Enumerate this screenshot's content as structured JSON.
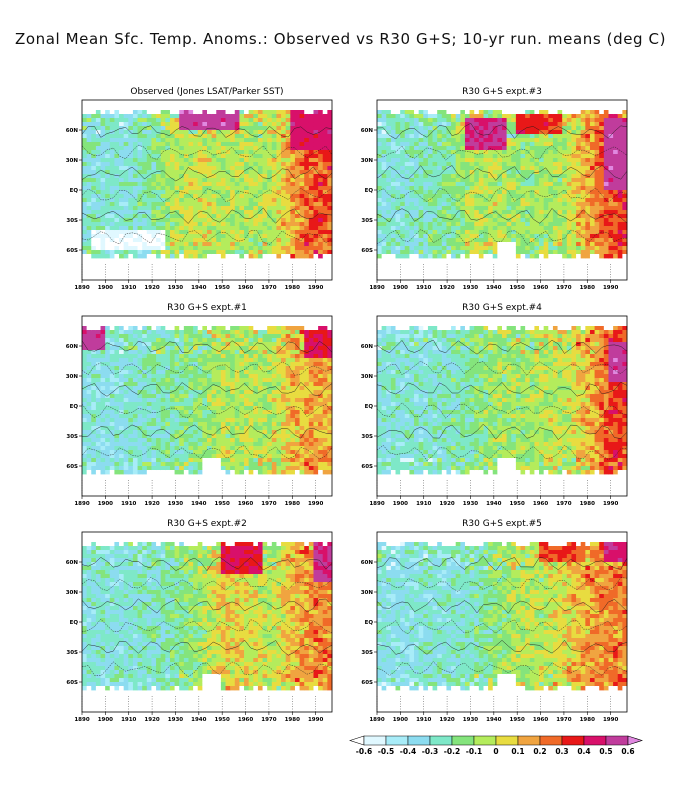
{
  "title": "Zonal Mean Sfc. Temp. Anoms.: Observed vs R30 G+S; 10-yr run. means (deg C)",
  "chart_data": [
    {
      "type": "heatmap",
      "title": "Observed (Jones LSAT/Parker SST)",
      "x_ticks": [
        "1890",
        "1900",
        "1910",
        "1920",
        "1930",
        "1940",
        "1950",
        "1960",
        "1970",
        "1980",
        "1990"
      ],
      "y_ticks": [
        "60N",
        "30N",
        "EQ",
        "30S",
        "60S"
      ],
      "xlim": [
        1890,
        1997
      ],
      "ylim": [
        -68,
        80
      ],
      "missing_gap": false,
      "mean_anomaly_by_decade": [
        {
          "x": 1890,
          "value": -0.25
        },
        {
          "x": 1900,
          "value": -0.3
        },
        {
          "x": 1910,
          "value": -0.3
        },
        {
          "x": 1920,
          "value": -0.2
        },
        {
          "x": 1930,
          "value": -0.05
        },
        {
          "x": 1940,
          "value": 0.0
        },
        {
          "x": 1950,
          "value": -0.05
        },
        {
          "x": 1960,
          "value": -0.05
        },
        {
          "x": 1970,
          "value": -0.05
        },
        {
          "x": 1980,
          "value": 0.15
        },
        {
          "x": 1990,
          "value": 0.3
        }
      ],
      "highlights": [
        {
          "x": [
            1932,
            1957
          ],
          "y": [
            62,
            78
          ],
          "value": 0.55
        },
        {
          "x": [
            1980,
            1997
          ],
          "y": [
            40,
            78
          ],
          "value": 0.45
        },
        {
          "x": [
            1893,
            1925
          ],
          "y": [
            -58,
            -42
          ],
          "value": -0.6
        }
      ]
    },
    {
      "type": "heatmap",
      "title": "R30 G+S expt.#3",
      "x_ticks": [
        "1890",
        "1900",
        "1910",
        "1920",
        "1930",
        "1940",
        "1950",
        "1960",
        "1970",
        "1980",
        "1990"
      ],
      "y_ticks": [
        "60N",
        "30N",
        "EQ",
        "30S",
        "60S"
      ],
      "xlim": [
        1890,
        1997
      ],
      "ylim": [
        -68,
        80
      ],
      "missing_gap": true,
      "mean_anomaly_by_decade": [
        {
          "x": 1890,
          "value": -0.3
        },
        {
          "x": 1900,
          "value": -0.3
        },
        {
          "x": 1910,
          "value": -0.25
        },
        {
          "x": 1920,
          "value": -0.2
        },
        {
          "x": 1930,
          "value": -0.05
        },
        {
          "x": 1940,
          "value": -0.05
        },
        {
          "x": 1950,
          "value": -0.1
        },
        {
          "x": 1960,
          "value": -0.1
        },
        {
          "x": 1970,
          "value": -0.05
        },
        {
          "x": 1980,
          "value": 0.15
        },
        {
          "x": 1990,
          "value": 0.3
        }
      ],
      "highlights": [
        {
          "x": [
            1928,
            1945
          ],
          "y": [
            40,
            70
          ],
          "value": 0.5
        },
        {
          "x": [
            1950,
            1970
          ],
          "y": [
            55,
            75
          ],
          "value": 0.35
        },
        {
          "x": [
            1988,
            1997
          ],
          "y": [
            0,
            70
          ],
          "value": 0.55
        }
      ]
    },
    {
      "type": "heatmap",
      "title": "R30 G+S expt.#1",
      "x_ticks": [
        "1890",
        "1900",
        "1910",
        "1920",
        "1930",
        "1940",
        "1950",
        "1960",
        "1970",
        "1980",
        "1990"
      ],
      "y_ticks": [
        "60N",
        "30N",
        "EQ",
        "30S",
        "60S"
      ],
      "xlim": [
        1890,
        1997
      ],
      "ylim": [
        -68,
        80
      ],
      "missing_gap": true,
      "mean_anomaly_by_decade": [
        {
          "x": 1890,
          "value": -0.3
        },
        {
          "x": 1900,
          "value": -0.35
        },
        {
          "x": 1910,
          "value": -0.3
        },
        {
          "x": 1920,
          "value": -0.25
        },
        {
          "x": 1930,
          "value": -0.2
        },
        {
          "x": 1940,
          "value": -0.15
        },
        {
          "x": 1950,
          "value": -0.05
        },
        {
          "x": 1960,
          "value": -0.05
        },
        {
          "x": 1970,
          "value": -0.05
        },
        {
          "x": 1980,
          "value": 0.1
        },
        {
          "x": 1990,
          "value": 0.15
        }
      ],
      "highlights": [
        {
          "x": [
            1890,
            1900
          ],
          "y": [
            55,
            78
          ],
          "value": 0.55
        },
        {
          "x": [
            1985,
            1997
          ],
          "y": [
            50,
            78
          ],
          "value": 0.4
        }
      ]
    },
    {
      "type": "heatmap",
      "title": "R30 G+S expt.#4",
      "x_ticks": [
        "1890",
        "1900",
        "1910",
        "1920",
        "1930",
        "1940",
        "1950",
        "1960",
        "1970",
        "1980",
        "1990"
      ],
      "y_ticks": [
        "60N",
        "30N",
        "EQ",
        "30S",
        "60S"
      ],
      "xlim": [
        1890,
        1997
      ],
      "ylim": [
        -68,
        80
      ],
      "missing_gap": true,
      "mean_anomaly_by_decade": [
        {
          "x": 1890,
          "value": -0.3
        },
        {
          "x": 1900,
          "value": -0.3
        },
        {
          "x": 1910,
          "value": -0.3
        },
        {
          "x": 1920,
          "value": -0.25
        },
        {
          "x": 1930,
          "value": -0.2
        },
        {
          "x": 1940,
          "value": -0.1
        },
        {
          "x": 1950,
          "value": -0.1
        },
        {
          "x": 1960,
          "value": -0.05
        },
        {
          "x": 1970,
          "value": -0.05
        },
        {
          "x": 1980,
          "value": 0.1
        },
        {
          "x": 1990,
          "value": 0.3
        }
      ],
      "highlights": [
        {
          "x": [
            1990,
            1997
          ],
          "y": [
            25,
            65
          ],
          "value": 0.55
        }
      ]
    },
    {
      "type": "heatmap",
      "title": "R30 G+S expt.#2",
      "x_ticks": [
        "1890",
        "1900",
        "1910",
        "1920",
        "1930",
        "1940",
        "1950",
        "1960",
        "1970",
        "1980",
        "1990"
      ],
      "y_ticks": [
        "60N",
        "30N",
        "EQ",
        "30S",
        "60S"
      ],
      "xlim": [
        1890,
        1997
      ],
      "ylim": [
        -68,
        80
      ],
      "missing_gap": true,
      "mean_anomaly_by_decade": [
        {
          "x": 1890,
          "value": -0.3
        },
        {
          "x": 1900,
          "value": -0.3
        },
        {
          "x": 1910,
          "value": -0.3
        },
        {
          "x": 1920,
          "value": -0.25
        },
        {
          "x": 1930,
          "value": -0.2
        },
        {
          "x": 1940,
          "value": -0.1
        },
        {
          "x": 1950,
          "value": 0.05
        },
        {
          "x": 1960,
          "value": 0.05
        },
        {
          "x": 1970,
          "value": -0.05
        },
        {
          "x": 1980,
          "value": 0.1
        },
        {
          "x": 1990,
          "value": 0.2
        }
      ],
      "highlights": [
        {
          "x": [
            1950,
            1968
          ],
          "y": [
            50,
            78
          ],
          "value": 0.4
        },
        {
          "x": [
            1990,
            1997
          ],
          "y": [
            40,
            78
          ],
          "value": 0.5
        }
      ]
    },
    {
      "type": "heatmap",
      "title": "R30 G+S expt.#5",
      "x_ticks": [
        "1890",
        "1900",
        "1910",
        "1920",
        "1930",
        "1940",
        "1950",
        "1960",
        "1970",
        "1980",
        "1990"
      ],
      "y_ticks": [
        "60N",
        "30N",
        "EQ",
        "30S",
        "60S"
      ],
      "xlim": [
        1890,
        1997
      ],
      "ylim": [
        -68,
        80
      ],
      "missing_gap": true,
      "mean_anomaly_by_decade": [
        {
          "x": 1890,
          "value": -0.3
        },
        {
          "x": 1900,
          "value": -0.35
        },
        {
          "x": 1910,
          "value": -0.3
        },
        {
          "x": 1920,
          "value": -0.3
        },
        {
          "x": 1930,
          "value": -0.25
        },
        {
          "x": 1940,
          "value": -0.15
        },
        {
          "x": 1950,
          "value": -0.05
        },
        {
          "x": 1960,
          "value": -0.05
        },
        {
          "x": 1970,
          "value": 0.05
        },
        {
          "x": 1980,
          "value": 0.15
        },
        {
          "x": 1990,
          "value": 0.2
        }
      ],
      "highlights": [
        {
          "x": [
            1960,
            1980
          ],
          "y": [
            60,
            78
          ],
          "value": 0.3
        },
        {
          "x": [
            1988,
            1997
          ],
          "y": [
            60,
            78
          ],
          "value": 0.5
        }
      ]
    }
  ],
  "colorbar": {
    "labels": [
      "-0.6",
      "-0.5",
      "-0.4",
      "-0.3",
      "-0.2",
      "-0.1",
      "0",
      "0.1",
      "0.2",
      "0.3",
      "0.4",
      "0.5",
      "0.6"
    ],
    "colors": [
      "#ffffff",
      "#e0f8ff",
      "#a8ecf8",
      "#8cdcf0",
      "#7ee8c8",
      "#84e47c",
      "#b4ec5c",
      "#e8dc40",
      "#f0a440",
      "#f06a28",
      "#e81818",
      "#d8106a",
      "#c03c9c",
      "#e088e0"
    ]
  }
}
